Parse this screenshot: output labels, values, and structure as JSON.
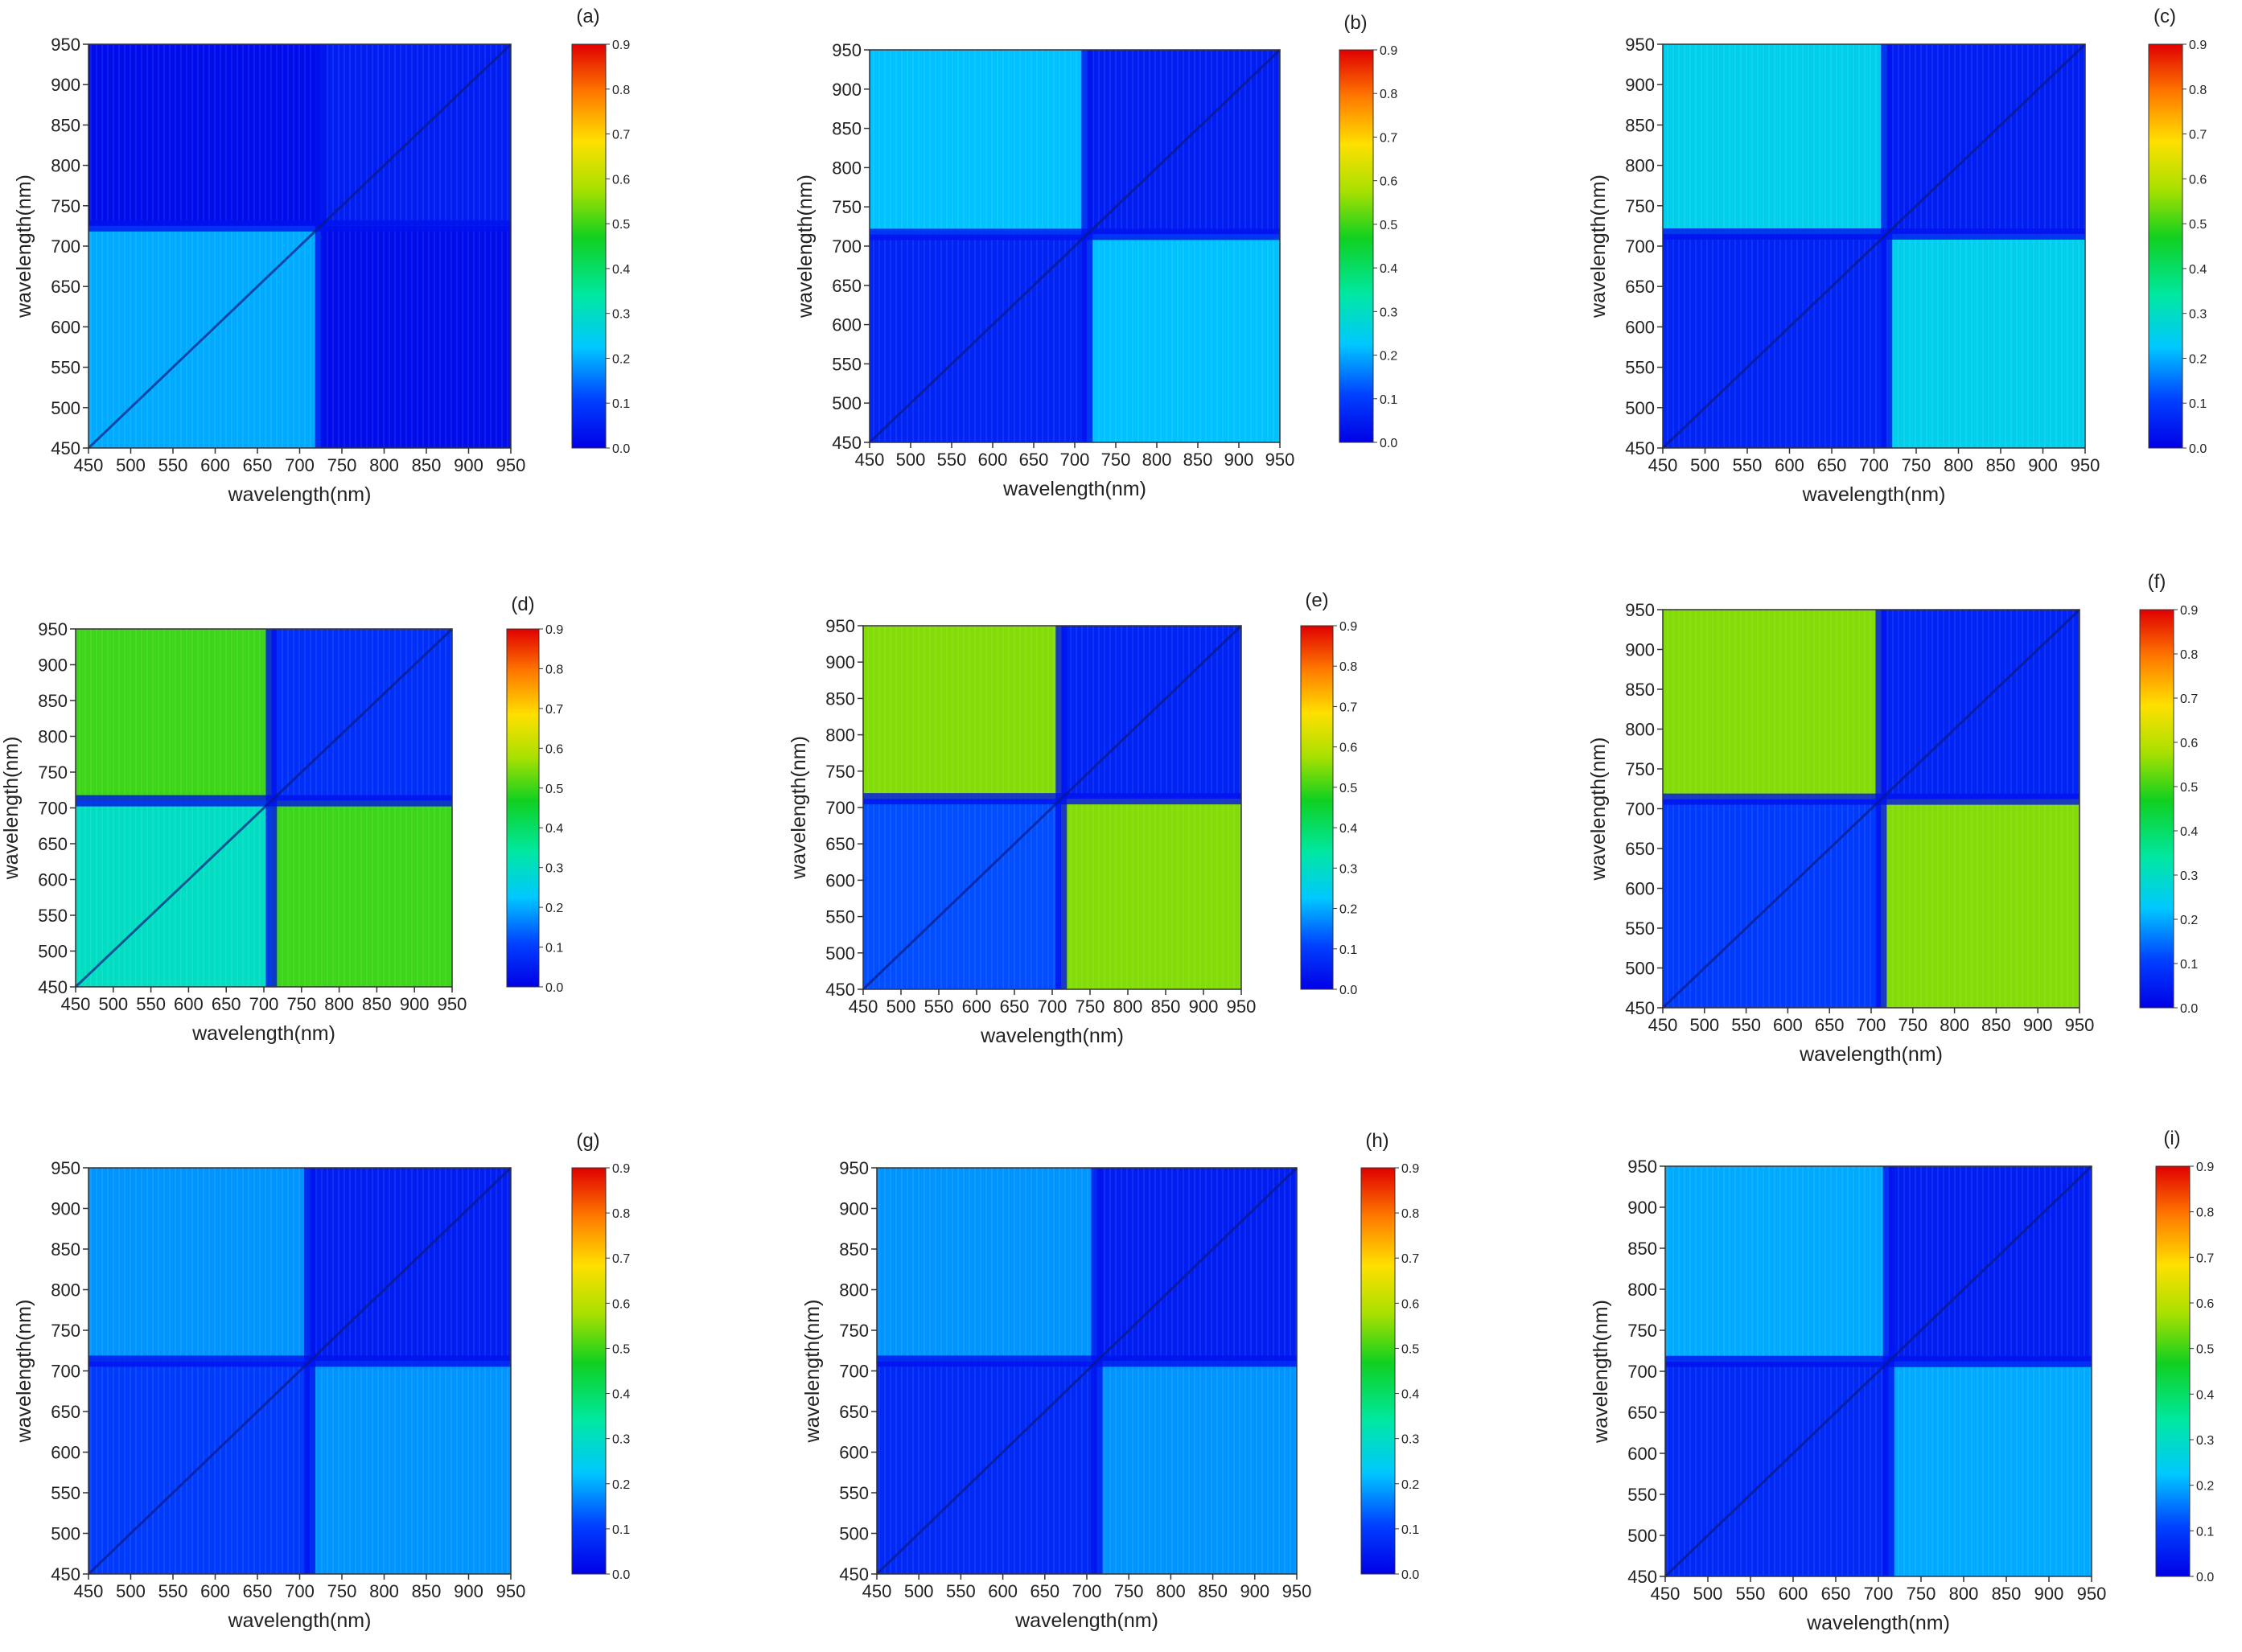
{
  "chart_data": [
    {
      "type": "heatmap",
      "panel_label": "(a)",
      "xlabel": "wavelength(nm)",
      "ylabel": "wavelength(nm)",
      "x_ticks": [
        450,
        500,
        550,
        600,
        650,
        700,
        750,
        800,
        850,
        900,
        950
      ],
      "y_ticks": [
        450,
        500,
        550,
        600,
        650,
        700,
        750,
        800,
        850,
        900,
        950
      ],
      "xlim": [
        450,
        950
      ],
      "ylim": [
        450,
        950
      ],
      "break_nm": 725,
      "colorbar": {
        "min": 0.0,
        "max": 0.9,
        "ticks": [
          "0.0",
          "0.1",
          "0.2",
          "0.3",
          "0.4",
          "0.5",
          "0.6",
          "0.7",
          "0.8",
          "0.9"
        ]
      },
      "approx_block_values": {
        "visible_visible": 0.2,
        "nir_nir": 0.05,
        "visible_nir": 0.02
      }
    },
    {
      "type": "heatmap",
      "panel_label": "(b)",
      "xlabel": "wavelength(nm)",
      "ylabel": "wavelength(nm)",
      "x_ticks": [
        450,
        500,
        550,
        600,
        650,
        700,
        750,
        800,
        850,
        900,
        950
      ],
      "y_ticks": [
        450,
        500,
        550,
        600,
        650,
        700,
        750,
        800,
        850,
        900,
        950
      ],
      "xlim": [
        450,
        950
      ],
      "ylim": [
        450,
        950
      ],
      "break_nm": 715,
      "colorbar": {
        "min": 0.0,
        "max": 0.9,
        "ticks": [
          "0.0",
          "0.1",
          "0.2",
          "0.3",
          "0.4",
          "0.5",
          "0.6",
          "0.7",
          "0.8",
          "0.9"
        ]
      },
      "approx_block_values": {
        "visible_visible": 0.06,
        "nir_nir": 0.05,
        "visible_nir": 0.22
      }
    },
    {
      "type": "heatmap",
      "panel_label": "(c)",
      "xlabel": "wavelength(nm)",
      "ylabel": "wavelength(nm)",
      "x_ticks": [
        450,
        500,
        550,
        600,
        650,
        700,
        750,
        800,
        850,
        900,
        950
      ],
      "y_ticks": [
        450,
        500,
        550,
        600,
        650,
        700,
        750,
        800,
        850,
        900,
        950
      ],
      "xlim": [
        450,
        950
      ],
      "ylim": [
        450,
        950
      ],
      "break_nm": 715,
      "colorbar": {
        "min": 0.0,
        "max": 0.9,
        "ticks": [
          "0.0",
          "0.1",
          "0.2",
          "0.3",
          "0.4",
          "0.5",
          "0.6",
          "0.7",
          "0.8",
          "0.9"
        ]
      },
      "approx_block_values": {
        "visible_visible": 0.06,
        "nir_nir": 0.05,
        "visible_nir": 0.25
      }
    },
    {
      "type": "heatmap",
      "panel_label": "(d)",
      "xlabel": "wavelength(nm)",
      "ylabel": "wavelength(nm)",
      "x_ticks": [
        450,
        500,
        550,
        600,
        650,
        700,
        750,
        800,
        850,
        900,
        950
      ],
      "y_ticks": [
        450,
        500,
        550,
        600,
        650,
        700,
        750,
        800,
        850,
        900,
        950
      ],
      "xlim": [
        450,
        950
      ],
      "ylim": [
        450,
        950
      ],
      "break_nm": 710,
      "colorbar": {
        "min": 0.0,
        "max": 0.9,
        "ticks": [
          "0.0",
          "0.1",
          "0.2",
          "0.3",
          "0.4",
          "0.5",
          "0.6",
          "0.7",
          "0.8",
          "0.9"
        ]
      },
      "approx_block_values": {
        "visible_visible": 0.3,
        "nir_nir": 0.08,
        "visible_nir": 0.5
      }
    },
    {
      "type": "heatmap",
      "panel_label": "(e)",
      "xlabel": "wavelength(nm)",
      "ylabel": "wavelength(nm)",
      "x_ticks": [
        450,
        500,
        550,
        600,
        650,
        700,
        750,
        800,
        850,
        900,
        950
      ],
      "y_ticks": [
        450,
        500,
        550,
        600,
        650,
        700,
        750,
        800,
        850,
        900,
        950
      ],
      "xlim": [
        450,
        950
      ],
      "ylim": [
        450,
        950
      ],
      "break_nm": 712,
      "colorbar": {
        "min": 0.0,
        "max": 0.9,
        "ticks": [
          "0.0",
          "0.1",
          "0.2",
          "0.3",
          "0.4",
          "0.5",
          "0.6",
          "0.7",
          "0.8",
          "0.9"
        ]
      },
      "approx_block_values": {
        "visible_visible": 0.12,
        "nir_nir": 0.06,
        "visible_nir": 0.55
      }
    },
    {
      "type": "heatmap",
      "panel_label": "(f)",
      "xlabel": "wavelength(nm)",
      "ylabel": "wavelength(nm)",
      "x_ticks": [
        450,
        500,
        550,
        600,
        650,
        700,
        750,
        800,
        850,
        900,
        950
      ],
      "y_ticks": [
        450,
        500,
        550,
        600,
        650,
        700,
        750,
        800,
        850,
        900,
        950
      ],
      "xlim": [
        450,
        950
      ],
      "ylim": [
        450,
        950
      ],
      "break_nm": 712,
      "colorbar": {
        "min": 0.0,
        "max": 0.9,
        "ticks": [
          "0.0",
          "0.1",
          "0.2",
          "0.3",
          "0.4",
          "0.5",
          "0.6",
          "0.7",
          "0.8",
          "0.9"
        ]
      },
      "approx_block_values": {
        "visible_visible": 0.1,
        "nir_nir": 0.06,
        "visible_nir": 0.55
      }
    },
    {
      "type": "heatmap",
      "panel_label": "(g)",
      "xlabel": "wavelength(nm)",
      "ylabel": "wavelength(nm)",
      "x_ticks": [
        450,
        500,
        550,
        600,
        650,
        700,
        750,
        800,
        850,
        900,
        950
      ],
      "y_ticks": [
        450,
        500,
        550,
        600,
        650,
        700,
        750,
        800,
        850,
        900,
        950
      ],
      "xlim": [
        450,
        950
      ],
      "ylim": [
        450,
        950
      ],
      "break_nm": 712,
      "colorbar": {
        "min": 0.0,
        "max": 0.9,
        "ticks": [
          "0.0",
          "0.1",
          "0.2",
          "0.3",
          "0.4",
          "0.5",
          "0.6",
          "0.7",
          "0.8",
          "0.9"
        ]
      },
      "approx_block_values": {
        "visible_visible": 0.1,
        "nir_nir": 0.05,
        "visible_nir": 0.18
      }
    },
    {
      "type": "heatmap",
      "panel_label": "(h)",
      "xlabel": "wavelength(nm)",
      "ylabel": "wavelength(nm)",
      "x_ticks": [
        450,
        500,
        550,
        600,
        650,
        700,
        750,
        800,
        850,
        900,
        950
      ],
      "y_ticks": [
        450,
        500,
        550,
        600,
        650,
        700,
        750,
        800,
        850,
        900,
        950
      ],
      "xlim": [
        450,
        950
      ],
      "ylim": [
        450,
        950
      ],
      "break_nm": 712,
      "colorbar": {
        "min": 0.0,
        "max": 0.9,
        "ticks": [
          "0.0",
          "0.1",
          "0.2",
          "0.3",
          "0.4",
          "0.5",
          "0.6",
          "0.7",
          "0.8",
          "0.9"
        ]
      },
      "approx_block_values": {
        "visible_visible": 0.07,
        "nir_nir": 0.05,
        "visible_nir": 0.18
      }
    },
    {
      "type": "heatmap",
      "panel_label": "(i)",
      "xlabel": "wavelength(nm)",
      "ylabel": "wavelength(nm)",
      "x_ticks": [
        450,
        500,
        550,
        600,
        650,
        700,
        750,
        800,
        850,
        900,
        950
      ],
      "y_ticks": [
        450,
        500,
        550,
        600,
        650,
        700,
        750,
        800,
        850,
        900,
        950
      ],
      "xlim": [
        450,
        950
      ],
      "ylim": [
        450,
        950
      ],
      "break_nm": 712,
      "colorbar": {
        "min": 0.0,
        "max": 0.9,
        "ticks": [
          "0.0",
          "0.1",
          "0.2",
          "0.3",
          "0.4",
          "0.5",
          "0.6",
          "0.7",
          "0.8",
          "0.9"
        ]
      },
      "approx_block_values": {
        "visible_visible": 0.07,
        "nir_nir": 0.05,
        "visible_nir": 0.2
      }
    }
  ]
}
